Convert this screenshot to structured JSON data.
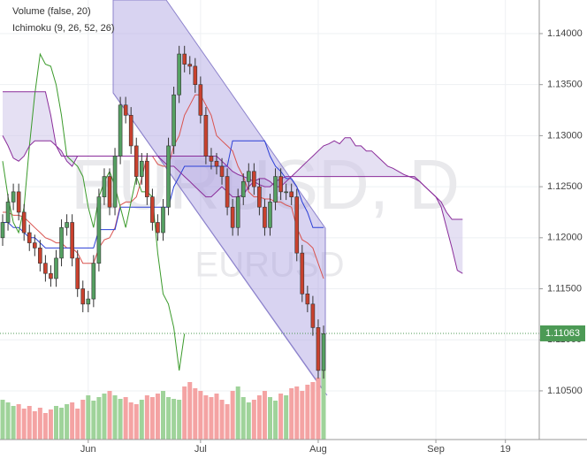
{
  "chart_data": {
    "type": "candlestick",
    "indicator_volume": "Volume (false, 20)",
    "indicator_ichimoku": "Ichimoku (9, 26, 52, 26)",
    "watermark": "EURUSD, D",
    "watermark_sub": "EURUSD",
    "grid": true,
    "ylim": [
      1.10023,
      1.14329
    ],
    "yticks": [
      {
        "value": 1.14,
        "label": "1.14000"
      },
      {
        "value": 1.135,
        "label": "1.13500"
      },
      {
        "value": 1.13,
        "label": "1.13000"
      },
      {
        "value": 1.125,
        "label": "1.12500"
      },
      {
        "value": 1.12,
        "label": "1.12000"
      },
      {
        "value": 1.115,
        "label": "1.11500"
      },
      {
        "value": 1.11,
        "label": "1.11000"
      },
      {
        "value": 1.105,
        "label": "1.10500"
      }
    ],
    "last_price": 1.11063,
    "last_price_color": "#4c9a55",
    "categories": [
      null,
      null,
      null,
      null,
      null,
      null,
      null,
      null,
      null,
      null,
      null,
      null,
      null,
      null,
      null,
      null,
      "Jun",
      null,
      null,
      null,
      null,
      null,
      null,
      null,
      null,
      null,
      null,
      null,
      null,
      null,
      null,
      null,
      null,
      null,
      null,
      null,
      null,
      "Jul",
      null,
      null,
      null,
      null,
      null,
      null,
      null,
      null,
      null,
      null,
      null,
      null,
      null,
      null,
      null,
      null,
      null,
      null,
      null,
      null,
      null,
      "Aug",
      null,
      null,
      null,
      null,
      null,
      null,
      null,
      null,
      null,
      null,
      null,
      null,
      null,
      null,
      null,
      null,
      null,
      null,
      null,
      null,
      null,
      "Sep",
      null,
      null,
      null,
      null,
      null,
      null,
      null,
      null,
      null,
      null,
      null,
      null,
      "19",
      null,
      null,
      null,
      null,
      null
    ],
    "candles": {
      "up_color": "#55a062",
      "down_color": "#c9412e",
      "open": [
        1.12,
        1.1215,
        1.1235,
        1.1245,
        1.1225,
        1.1205,
        1.1195,
        1.119,
        1.1175,
        1.1165,
        1.116,
        1.118,
        1.121,
        1.1215,
        1.118,
        1.115,
        1.1135,
        1.114,
        1.1175,
        1.124,
        1.126,
        1.123,
        1.128,
        1.133,
        1.132,
        1.129,
        1.126,
        1.1275,
        1.124,
        1.1215,
        1.1205,
        1.123,
        1.129,
        1.134,
        1.138,
        1.137,
        1.1368,
        1.135,
        1.132,
        1.128,
        1.1275,
        1.127,
        1.126,
        1.123,
        1.121,
        1.124,
        1.1255,
        1.1265,
        1.125,
        1.123,
        1.121,
        1.1235,
        1.126,
        1.1245,
        1.1245,
        1.124,
        1.1185,
        1.1145,
        1.1135,
        1.1112,
        1.107
      ],
      "high": [
        1.1223,
        1.1243,
        1.1253,
        1.1253,
        1.1233,
        1.1213,
        1.1203,
        1.1198,
        1.1183,
        1.1173,
        1.1188,
        1.1218,
        1.1223,
        1.1223,
        1.1188,
        1.1158,
        1.1148,
        1.1183,
        1.1248,
        1.1268,
        1.1268,
        1.1288,
        1.1338,
        1.1338,
        1.1328,
        1.1298,
        1.1283,
        1.1283,
        1.1248,
        1.1223,
        1.1238,
        1.1298,
        1.1348,
        1.1388,
        1.1388,
        1.1378,
        1.1376,
        1.1358,
        1.1328,
        1.1288,
        1.1283,
        1.1278,
        1.1268,
        1.1238,
        1.1248,
        1.1263,
        1.1273,
        1.1273,
        1.1258,
        1.1238,
        1.1243,
        1.1268,
        1.1268,
        1.1253,
        1.1253,
        1.1248,
        1.1193,
        1.1153,
        1.1143,
        1.112,
        1.1114
      ],
      "low": [
        1.1192,
        1.1207,
        1.1227,
        1.1217,
        1.1197,
        1.1187,
        1.1182,
        1.1167,
        1.1157,
        1.1152,
        1.1152,
        1.1172,
        1.1202,
        1.1172,
        1.1142,
        1.1127,
        1.1127,
        1.1132,
        1.1167,
        1.1232,
        1.1222,
        1.1222,
        1.1272,
        1.1312,
        1.1282,
        1.1252,
        1.1252,
        1.1232,
        1.1207,
        1.1197,
        1.1197,
        1.1222,
        1.1282,
        1.1332,
        1.1362,
        1.136,
        1.1342,
        1.1312,
        1.1272,
        1.1267,
        1.1262,
        1.1252,
        1.1222,
        1.1202,
        1.1202,
        1.1232,
        1.1247,
        1.1242,
        1.1222,
        1.1202,
        1.1202,
        1.1227,
        1.1237,
        1.1237,
        1.1232,
        1.1177,
        1.1137,
        1.1127,
        1.1104,
        1.1062,
        1.1062
      ],
      "close": [
        1.1215,
        1.1235,
        1.1245,
        1.1225,
        1.1205,
        1.1195,
        1.119,
        1.1175,
        1.1165,
        1.116,
        1.118,
        1.121,
        1.1215,
        1.118,
        1.115,
        1.1135,
        1.114,
        1.1175,
        1.124,
        1.126,
        1.123,
        1.128,
        1.133,
        1.132,
        1.129,
        1.126,
        1.1275,
        1.124,
        1.1215,
        1.1205,
        1.123,
        1.129,
        1.134,
        1.138,
        1.137,
        1.1368,
        1.135,
        1.132,
        1.128,
        1.1275,
        1.127,
        1.126,
        1.123,
        1.121,
        1.124,
        1.1255,
        1.1265,
        1.125,
        1.123,
        1.121,
        1.1235,
        1.126,
        1.1245,
        1.1245,
        1.124,
        1.1185,
        1.1145,
        1.1135,
        1.1112,
        1.107,
        1.1106
      ]
    },
    "volume": {
      "up_color": "#9fd39a",
      "down_color": "#f4a3a3",
      "values": [
        45,
        42,
        38,
        40,
        35,
        38,
        32,
        36,
        30,
        34,
        38,
        36,
        40,
        42,
        35,
        45,
        50,
        44,
        48,
        52,
        55,
        50,
        46,
        48,
        42,
        40,
        45,
        50,
        48,
        52,
        55,
        48,
        46,
        45,
        60,
        65,
        58,
        55,
        50,
        48,
        52,
        45,
        40,
        55,
        60,
        48,
        42,
        45,
        50,
        55,
        48,
        44,
        52,
        50,
        58,
        60,
        55,
        62,
        65,
        70,
        80
      ]
    },
    "ichimoku": {
      "cloud_color": "#cfc6ea",
      "series": [
        {
          "color": "#d9534f",
          "values": [
            1.1225,
            1.1225,
            1.1222,
            1.1222,
            1.122,
            1.1215,
            1.121,
            1.1205,
            1.12,
            1.1198,
            1.1195,
            1.1195,
            1.119,
            1.119,
            1.1185,
            1.1175,
            1.1175,
            1.1175,
            1.119,
            1.1198,
            1.12,
            1.121,
            1.1232,
            1.1235,
            1.1235,
            1.124,
            1.1258,
            1.128,
            1.128,
            1.1272,
            1.127,
            1.127,
            1.129,
            1.13,
            1.132,
            1.133,
            1.134,
            1.134,
            1.133,
            1.132,
            1.13,
            1.1295,
            1.129,
            1.1285,
            1.127,
            1.126,
            1.1245,
            1.124,
            1.124,
            1.1238,
            1.1238,
            1.1235,
            1.1235,
            1.1232,
            1.123,
            1.121,
            1.1198,
            1.1195,
            1.119,
            1.1175,
            1.116
          ]
        },
        {
          "color": "#2b3fd6",
          "values": [
            1.1215,
            1.1215,
            1.121,
            1.121,
            1.1205,
            1.12,
            1.12,
            1.1195,
            1.119,
            1.119,
            1.119,
            1.119,
            1.119,
            1.119,
            1.119,
            1.119,
            1.119,
            1.119,
            1.1208,
            1.1208,
            1.1208,
            1.1208,
            1.123,
            1.123,
            1.123,
            1.123,
            1.123,
            1.123,
            1.123,
            1.123,
            1.123,
            1.123,
            1.125,
            1.126,
            1.127,
            1.127,
            1.127,
            1.127,
            1.127,
            1.127,
            1.127,
            1.127,
            1.127,
            1.1295,
            1.1295,
            1.1295,
            1.1295,
            1.1295,
            1.1295,
            1.1295,
            1.128,
            1.127,
            1.1265,
            1.1258,
            1.1258,
            1.125,
            1.1235,
            1.1225,
            1.121,
            1.121,
            1.121
          ]
        },
        {
          "color": "#3a9a2a",
          "values": [
            1.1275,
            1.124,
            1.1215,
            1.1205,
            1.123,
            1.129,
            1.134,
            1.138,
            1.137,
            1.1368,
            1.135,
            1.132,
            1.128,
            1.1275,
            1.127,
            1.126,
            1.123,
            1.121,
            1.124,
            1.1255,
            1.1265,
            1.125,
            1.123,
            1.121,
            1.1235,
            1.126,
            1.1245,
            1.1245,
            1.124,
            1.1185,
            1.1145,
            1.1135,
            1.1112,
            1.107,
            1.1106
          ]
        },
        {
          "color": "#8a2c9a",
          "values": [
            1.13,
            1.129,
            1.1278,
            1.1275,
            1.128,
            1.129,
            1.1295,
            1.1295,
            1.1295,
            1.1295,
            1.129,
            1.1285,
            1.1275,
            1.127,
            1.128,
            1.128,
            1.128,
            1.128,
            1.128,
            1.128,
            1.128,
            1.128,
            1.128,
            1.128,
            1.128,
            1.128,
            1.128,
            1.128,
            1.128,
            1.128,
            1.1275,
            1.127,
            1.127,
            1.1265,
            1.126,
            1.1255,
            1.125,
            1.1245,
            1.124,
            1.124,
            1.1245,
            1.125,
            1.1245,
            1.124,
            1.124,
            1.1242,
            1.125,
            1.1255,
            1.1258,
            1.1258,
            1.1255,
            1.125,
            1.125,
            1.1255,
            1.126,
            1.1265,
            1.127,
            1.1275,
            1.128,
            1.1285,
            1.129,
            1.1292,
            1.1295,
            1.1292,
            1.1298,
            1.1298,
            1.129,
            1.129,
            1.1285,
            1.1285,
            1.128,
            1.1275,
            1.127,
            1.1268,
            1.1265,
            1.1262,
            1.126,
            1.1258,
            1.1255,
            1.125,
            1.1245,
            1.124,
            1.123,
            1.121,
            1.119,
            1.1168,
            1.1165
          ]
        },
        {
          "color": "#8a2c9a",
          "values": [
            1.1343,
            1.1343,
            1.1343,
            1.1343,
            1.1343,
            1.1343,
            1.1343,
            1.1343,
            1.1343,
            1.132,
            1.129,
            1.128,
            1.128,
            1.128,
            1.128,
            1.128,
            1.128,
            1.128,
            1.128,
            1.128,
            1.128,
            1.128,
            1.128,
            1.128,
            1.128,
            1.128,
            1.128,
            1.128,
            1.128,
            1.128,
            1.128,
            1.128,
            1.128,
            1.128,
            1.128,
            1.128,
            1.128,
            1.128,
            1.128,
            1.128,
            1.128,
            1.1275,
            1.127,
            1.1265,
            1.1262,
            1.126,
            1.1258,
            1.1255,
            1.1252,
            1.125,
            1.125,
            1.1255,
            1.1258,
            1.126,
            1.126,
            1.126,
            1.126,
            1.126,
            1.126,
            1.126,
            1.126,
            1.126,
            1.126,
            1.126,
            1.126,
            1.126,
            1.126,
            1.126,
            1.126,
            1.126,
            1.126,
            1.126,
            1.126,
            1.126,
            1.126,
            1.126,
            1.126,
            1.126,
            1.1255,
            1.125,
            1.1245,
            1.124,
            1.1235,
            1.1225,
            1.1218,
            1.1218,
            1.1218
          ]
        }
      ]
    }
  }
}
